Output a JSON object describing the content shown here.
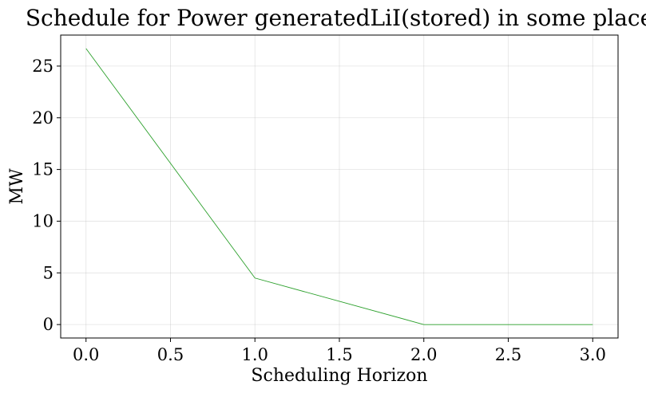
{
  "chart_data": {
    "type": "line",
    "title": "Schedule for Power generatedLiI(stored) in some place",
    "xlabel": "Scheduling Horizon",
    "ylabel": "MW",
    "x": [
      0.0,
      1.0,
      2.0,
      3.0
    ],
    "series": [
      {
        "values": [
          26.7,
          4.5,
          0.0,
          0.0
        ],
        "color": "#2ca02c"
      }
    ],
    "xticks": [
      "0.0",
      "0.5",
      "1.0",
      "1.5",
      "2.0",
      "2.5",
      "3.0"
    ],
    "yticks": [
      "0",
      "5",
      "10",
      "15",
      "20",
      "25"
    ],
    "xlim": [
      -0.15,
      3.15
    ],
    "ylim": [
      -1.3,
      28.0
    ],
    "grid": true,
    "legend": "none"
  }
}
